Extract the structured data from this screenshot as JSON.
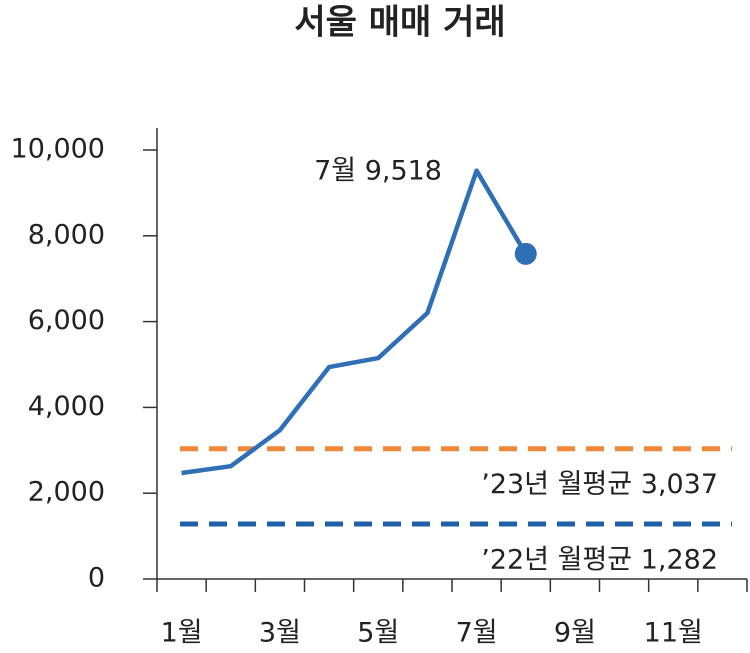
{
  "chart_data": {
    "type": "line",
    "title": "서울 매매 거래",
    "categories": [
      "1월",
      null,
      "3월",
      null,
      "5월",
      null,
      "7월",
      null,
      "9월",
      null,
      "11월",
      null
    ],
    "series": [
      {
        "name": "서울 매매 거래",
        "color": "#2e6fb5",
        "values": [
          2470,
          2630,
          3470,
          4940,
          5150,
          6200,
          9518,
          7580,
          null,
          null,
          null,
          null
        ]
      }
    ],
    "ylim": [
      0,
      10000
    ],
    "yticks": [
      0,
      {
        "value": 2000,
        "label": "2,000"
      },
      {
        "value": 4000,
        "label": "4,000"
      },
      {
        "value": 6000,
        "label": "6,000"
      },
      {
        "value": 8000,
        "label": "8,000"
      },
      {
        "value": 10000,
        "label": "10,000"
      }
    ],
    "annotation": "7월 9,518",
    "reference_lines": [
      {
        "label": "’23년 월평균 3,037",
        "value": 3037,
        "color": "#f0883a"
      },
      {
        "label": "’22년 월평균 1,282",
        "value": 1282,
        "color": "#1f5fa8"
      }
    ]
  }
}
